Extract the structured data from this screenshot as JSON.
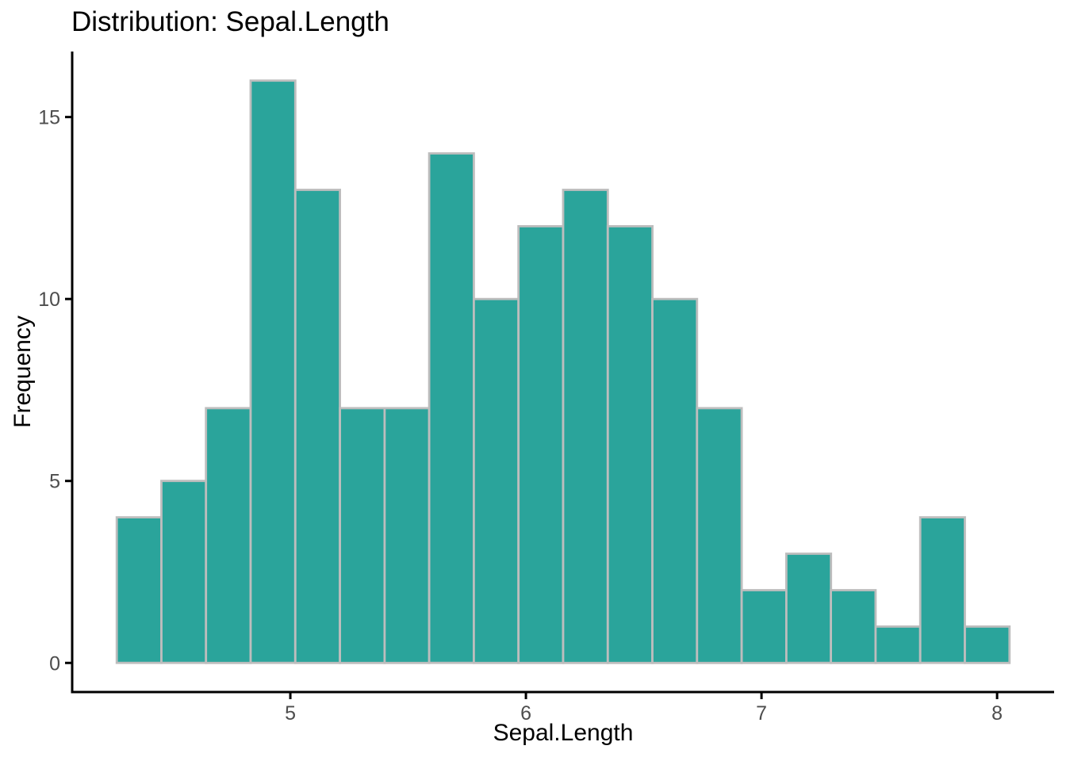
{
  "chart_data": {
    "type": "bar",
    "chart_kind": "histogram",
    "title": "Distribution: Sepal.Length",
    "xlabel": "Sepal.Length",
    "ylabel": "Frequency",
    "values": [
      4,
      5,
      7,
      16,
      13,
      7,
      7,
      14,
      10,
      12,
      13,
      12,
      10,
      7,
      2,
      3,
      2,
      1,
      4,
      1
    ],
    "bin_edges": [
      4.2632,
      4.4526,
      4.6421,
      4.8316,
      5.0211,
      5.2105,
      5.4,
      5.5895,
      5.7789,
      5.9684,
      6.1579,
      6.3474,
      6.5368,
      6.7263,
      6.9158,
      7.1053,
      7.2947,
      7.4842,
      7.6737,
      7.8632,
      8.0526
    ],
    "x_ticks": [
      5,
      6,
      7,
      8
    ],
    "y_ticks": [
      0,
      5,
      10,
      15
    ],
    "xlim": [
      4.074,
      8.242
    ],
    "ylim": [
      -0.8,
      16.8
    ],
    "grid": "off",
    "legend": "none",
    "colors": {
      "bar_fill": "#2AA49B",
      "bar_stroke": "#BDBDBD",
      "axis": "#000000",
      "tick_label": "#4D4D4D",
      "title": "#000000",
      "background": "#FFFFFF"
    }
  }
}
